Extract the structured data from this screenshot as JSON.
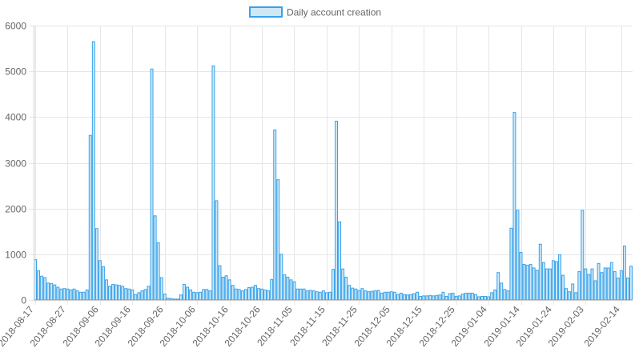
{
  "chart_data": {
    "type": "bar",
    "legend": {
      "label": "Daily account creation",
      "position": "top"
    },
    "colors": {
      "bar_fill": "#cfe8f6",
      "bar_stroke": "#36a2eb",
      "grid": "#e6e6e6",
      "text": "#666666"
    },
    "grid": true,
    "ylim": [
      0,
      6000
    ],
    "yticks": [
      0,
      1000,
      2000,
      3000,
      4000,
      5000,
      6000
    ],
    "xticks": [
      "2018-08-17",
      "2018-08-27",
      "2018-09-06",
      "2018-09-16",
      "2018-09-26",
      "2018-10-06",
      "2018-10-16",
      "2018-10-26",
      "2018-11-05",
      "2018-11-15",
      "2018-11-25",
      "2018-12-05",
      "2018-12-15",
      "2018-12-25",
      "2019-01-04",
      "2019-01-14",
      "2019-01-24",
      "2019-02-03",
      "2019-02-14"
    ],
    "x_start": "2018-08-17",
    "x_end": "2019-02-14",
    "values": [
      880,
      640,
      520,
      490,
      370,
      360,
      330,
      280,
      240,
      250,
      240,
      220,
      240,
      200,
      170,
      170,
      220,
      3600,
      5650,
      1560,
      860,
      730,
      440,
      300,
      340,
      330,
      320,
      300,
      250,
      240,
      220,
      120,
      160,
      200,
      230,
      300,
      5050,
      1840,
      1250,
      490,
      130,
      40,
      30,
      20,
      20,
      110,
      340,
      280,
      220,
      170,
      160,
      170,
      230,
      230,
      200,
      5120,
      2170,
      750,
      500,
      530,
      440,
      320,
      240,
      230,
      200,
      230,
      270,
      280,
      320,
      250,
      240,
      220,
      200,
      450,
      3720,
      2630,
      1000,
      550,
      500,
      440,
      400,
      240,
      240,
      240,
      200,
      210,
      200,
      180,
      170,
      200,
      160,
      170,
      670,
      3910,
      1710,
      680,
      500,
      320,
      260,
      240,
      210,
      250,
      200,
      180,
      190,
      200,
      210,
      150,
      170,
      170,
      180,
      170,
      120,
      150,
      120,
      110,
      120,
      140,
      170,
      80,
      90,
      90,
      100,
      90,
      100,
      110,
      170,
      80,
      140,
      150,
      80,
      90,
      130,
      150,
      150,
      150,
      120,
      70,
      80,
      80,
      70,
      160,
      220,
      600,
      370,
      230,
      200,
      1570,
      4100,
      1960,
      1040,
      780,
      760,
      780,
      700,
      650,
      1220,
      820,
      680,
      680,
      860,
      840,
      990,
      540,
      250,
      180,
      350,
      160,
      620,
      1960,
      680,
      560,
      680,
      420,
      800,
      600,
      700,
      700,
      820,
      620,
      480,
      640,
      1180,
      480,
      740
    ]
  }
}
